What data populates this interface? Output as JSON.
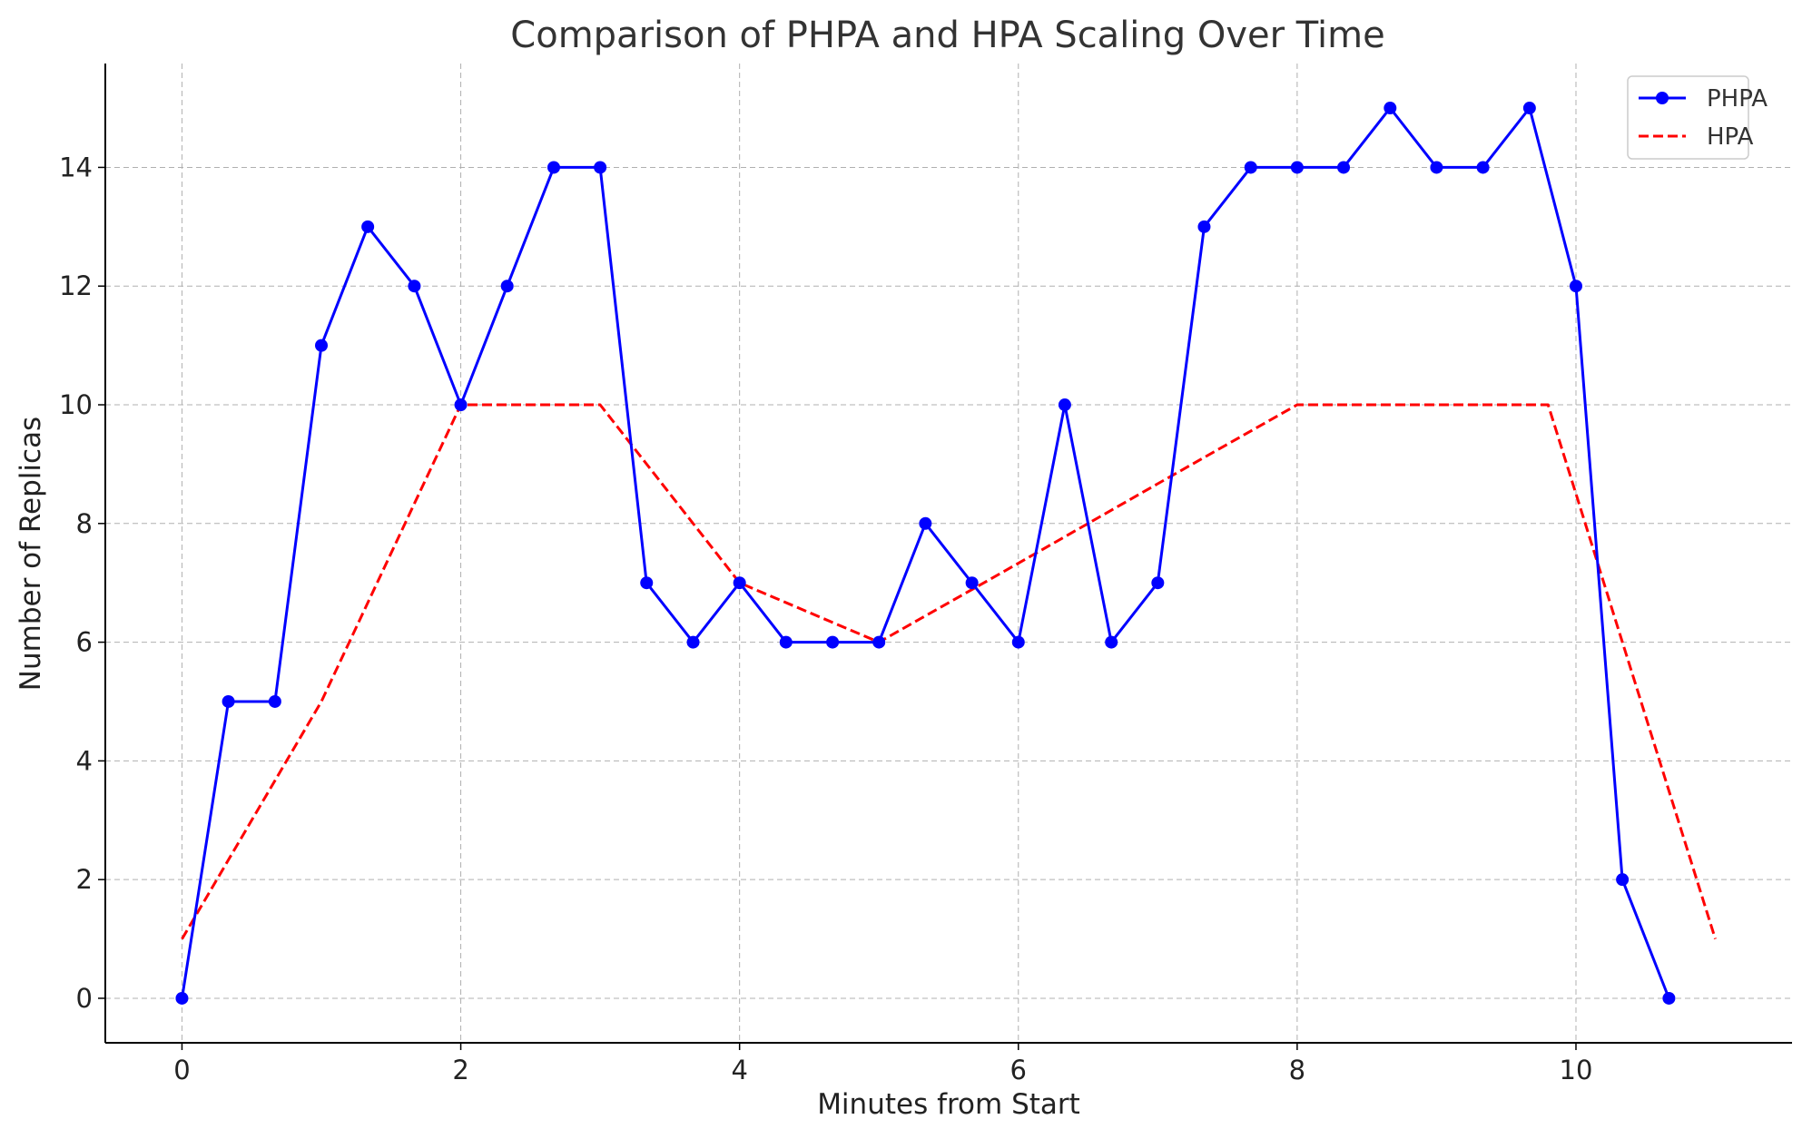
{
  "chart_data": {
    "type": "line",
    "title": "Comparison of PHPA and HPA Scaling Over Time",
    "xlabel": "Minutes from Start",
    "ylabel": "Number of Replicas",
    "xlim": [
      -0.55,
      11.55
    ],
    "ylim": [
      -0.75,
      15.75
    ],
    "xticks": [
      0,
      2,
      4,
      6,
      8,
      10
    ],
    "yticks": [
      0,
      2,
      4,
      6,
      8,
      10,
      12,
      14
    ],
    "grid": true,
    "legend_position": "top-right",
    "series": [
      {
        "name": "PHPA",
        "color": "#0000ff",
        "style": "solid",
        "marker": "circle",
        "x": [
          0,
          0.333,
          0.667,
          1,
          1.333,
          1.667,
          2,
          2.333,
          2.667,
          3,
          3.333,
          3.667,
          4,
          4.333,
          4.667,
          5,
          5.333,
          5.667,
          6,
          6.333,
          6.667,
          7,
          7.333,
          7.667,
          8,
          8.333,
          8.667,
          9,
          9.333,
          9.667,
          10,
          10.333,
          10.667
        ],
        "values": [
          0,
          5,
          5,
          11,
          13,
          12,
          10,
          12,
          14,
          14,
          7,
          6,
          7,
          6,
          6,
          6,
          8,
          7,
          6,
          10,
          6,
          7,
          13,
          14,
          14,
          14,
          15,
          14,
          14,
          15,
          12,
          2,
          0
        ]
      },
      {
        "name": "HPA",
        "color": "#ff0000",
        "style": "dashed",
        "marker": "none",
        "x": [
          0,
          1,
          2,
          3,
          4,
          5,
          6,
          7,
          8,
          9,
          9.8,
          11
        ],
        "values": [
          1,
          5,
          10,
          10,
          7,
          6,
          7.33,
          8.67,
          10,
          10,
          10,
          1
        ]
      }
    ]
  }
}
